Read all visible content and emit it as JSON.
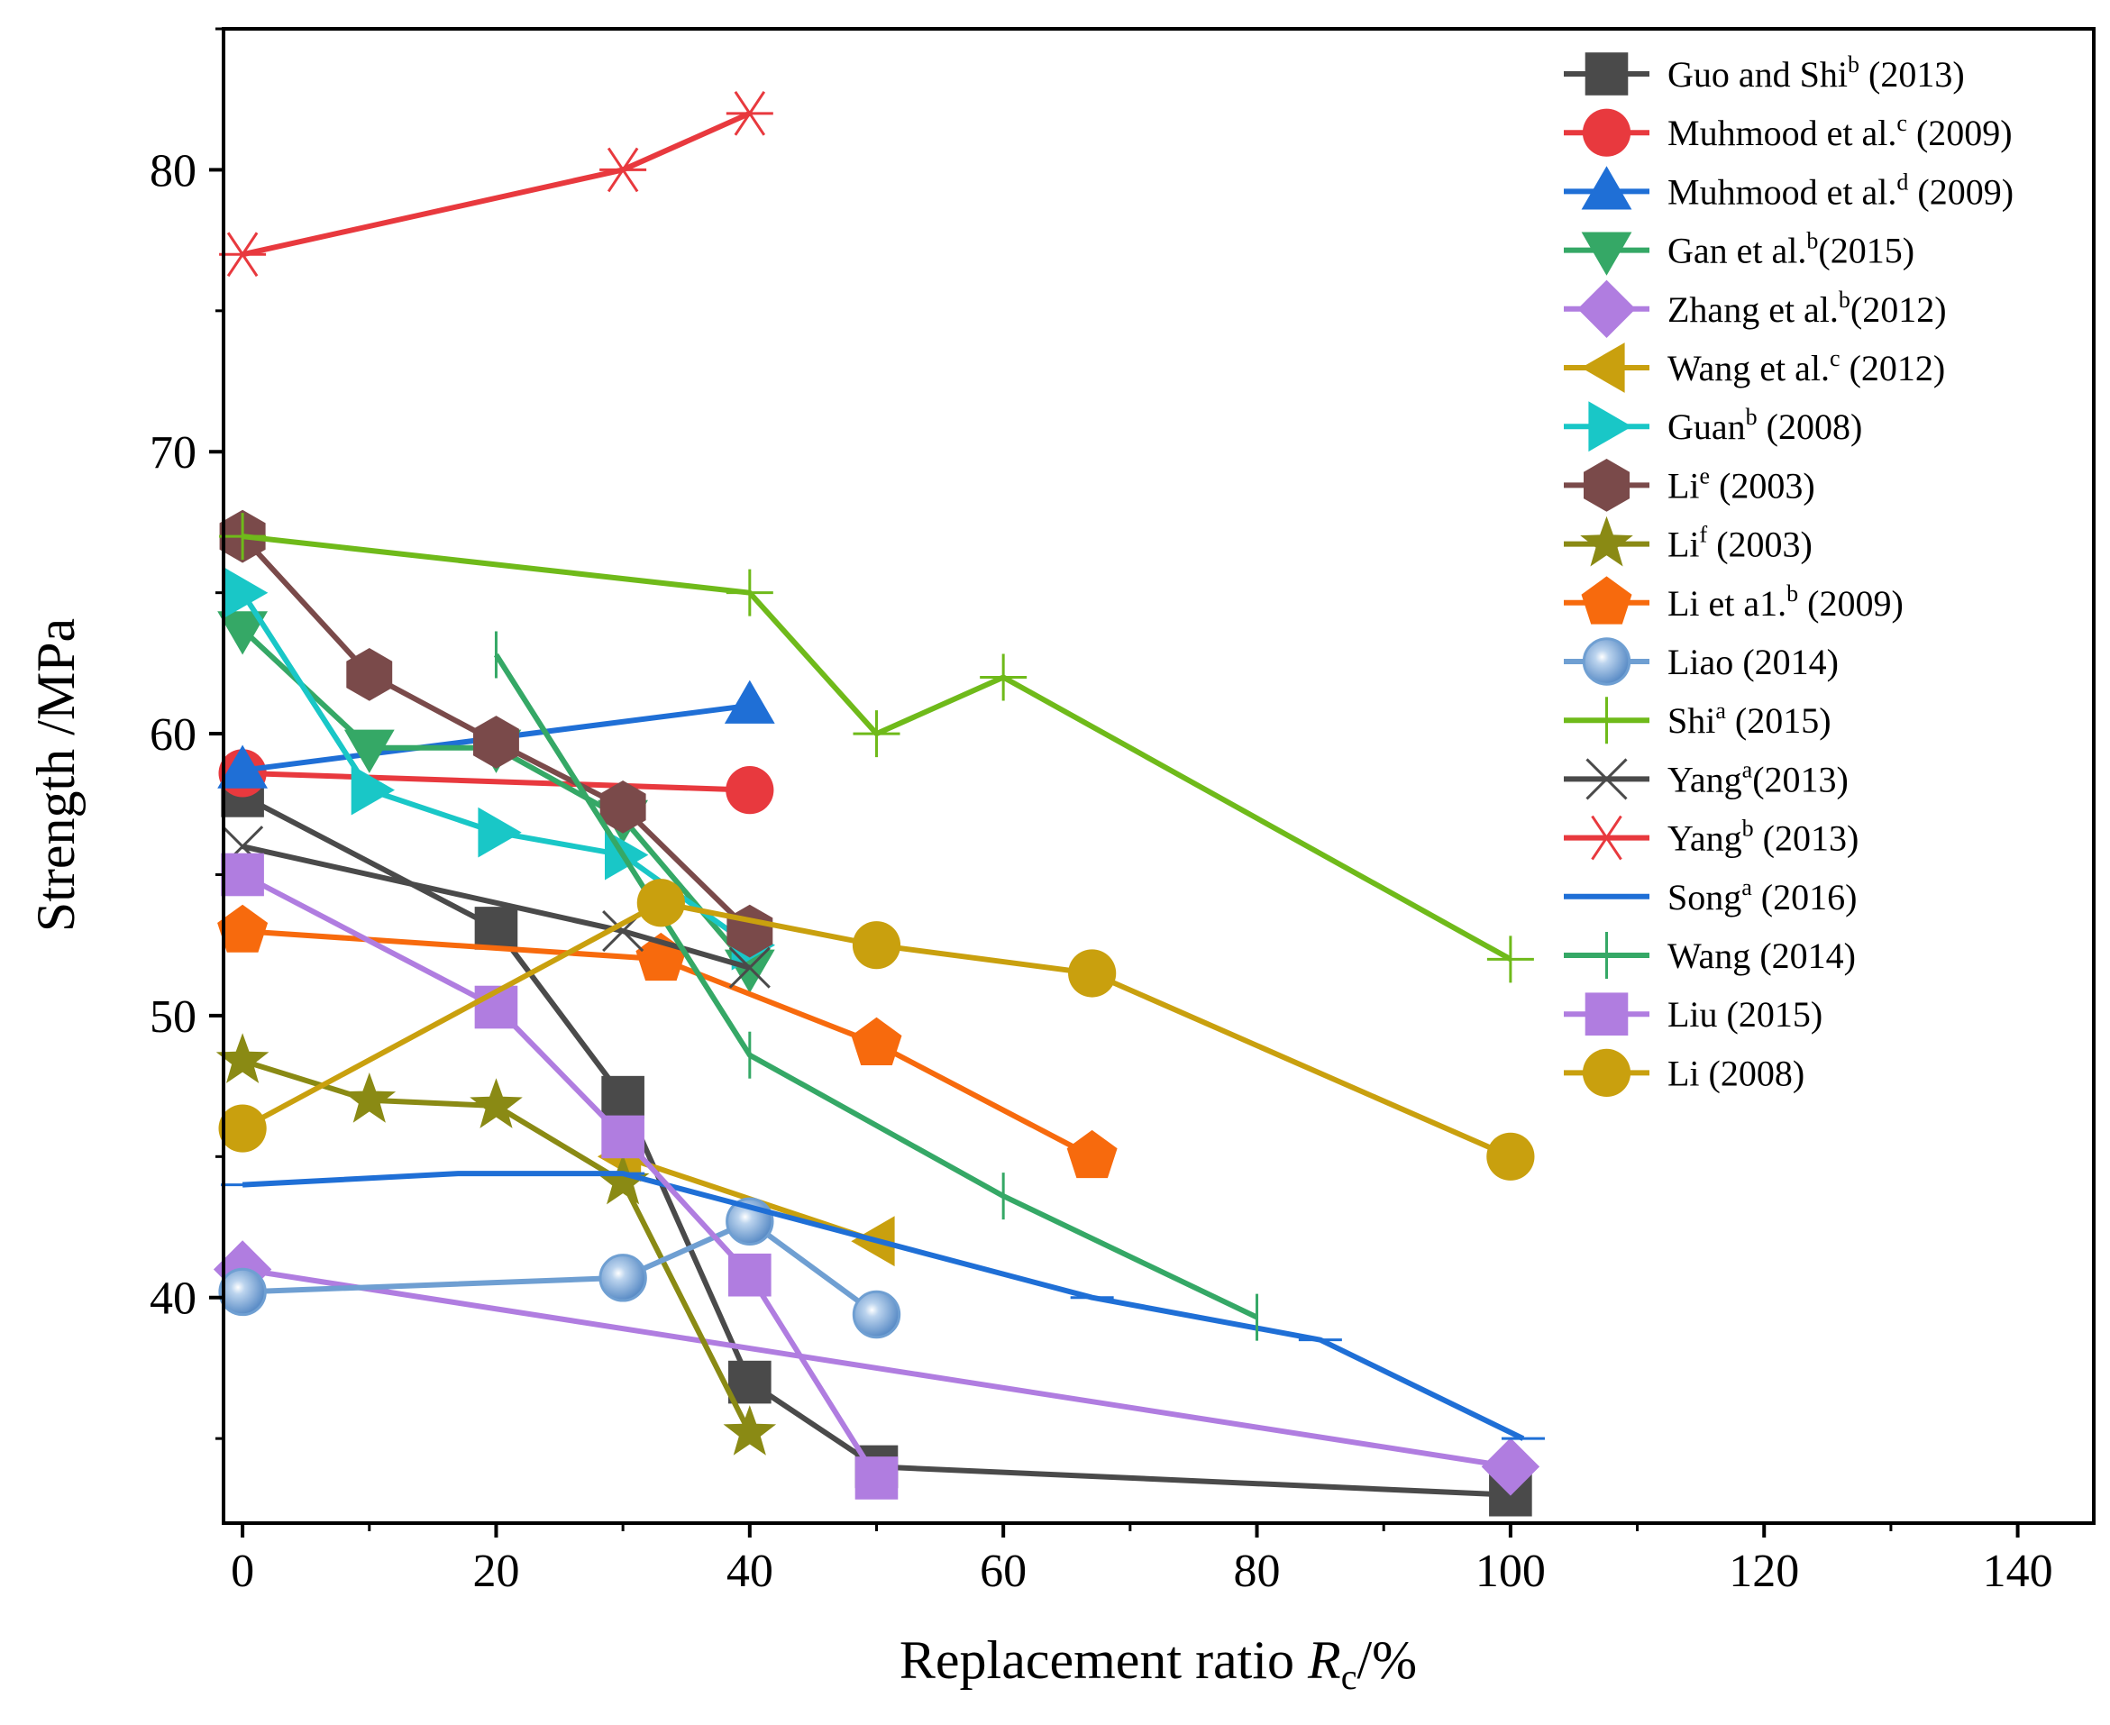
{
  "chart_data": {
    "type": "line",
    "title": "",
    "xlabel": {
      "prefix": "Replacement ratio ",
      "italic": "R",
      "subscript": "c",
      "suffix": "/%"
    },
    "ylabel": "Strength /MPa",
    "xlim": [
      -1.5,
      146
    ],
    "ylim": [
      32,
      85
    ],
    "xticks": [
      0,
      20,
      40,
      60,
      80,
      100,
      120,
      140
    ],
    "yticks": [
      40,
      50,
      60,
      70,
      80
    ],
    "grid": false,
    "legend_position": "top-right",
    "series": [
      {
        "name": "Guo and Shi",
        "sup": "b",
        "year": " (2013)",
        "color": "#4a4a4a",
        "marker": "square",
        "x": [
          0,
          20,
          30,
          40,
          50,
          100
        ],
        "y": [
          57.8,
          53.1,
          47.1,
          37,
          34,
          33
        ]
      },
      {
        "name": "Muhmood et al.",
        "sup": "c",
        "year": " (2009)",
        "color": "#e8393e",
        "marker": "circle",
        "x": [
          0,
          40
        ],
        "y": [
          58.6,
          58
        ]
      },
      {
        "name": "Muhmood et al.",
        "sup": "d",
        "year": " (2009)",
        "color": "#1f6fd6",
        "marker": "triangle-up",
        "x": [
          0,
          40
        ],
        "y": [
          58.7,
          61
        ]
      },
      {
        "name": "Gan et al.",
        "sup": "b",
        "year": "(2015)",
        "color": "#35a866",
        "marker": "triangle-down",
        "x": [
          0,
          10,
          20,
          30,
          40
        ],
        "y": [
          63.7,
          59.5,
          59.5,
          57,
          51.7
        ]
      },
      {
        "name": "Zhang et al.",
        "sup": "b",
        "year": "(2012)",
        "color": "#b07de0",
        "marker": "diamond",
        "x": [
          0,
          100
        ],
        "y": [
          41,
          34
        ]
      },
      {
        "name": "Wang et al.",
        "sup": "c",
        "year": " (2012)",
        "color": "#c9a00e",
        "marker": "triangle-left",
        "x": [
          30,
          50
        ],
        "y": [
          45,
          42
        ]
      },
      {
        "name": "Guan",
        "sup": "b",
        "year": " (2008)",
        "color": "#19c7c7",
        "marker": "triangle-right",
        "x": [
          0,
          10,
          20,
          30,
          40
        ],
        "y": [
          65,
          58,
          56.5,
          55.7,
          52.5
        ]
      },
      {
        "name": "Li",
        "sup": "e",
        "year": " (2003)",
        "color": "#7a4a4a",
        "marker": "hexagon",
        "x": [
          0,
          10,
          20,
          30,
          40
        ],
        "y": [
          67,
          62.1,
          59.7,
          57.4,
          53
        ]
      },
      {
        "name": "Li",
        "sup": "f",
        "year": " (2003)",
        "color": "#8a8a14",
        "marker": "star",
        "x": [
          0,
          10,
          20,
          30,
          40
        ],
        "y": [
          48.4,
          47,
          46.8,
          44.1,
          35.2
        ]
      },
      {
        "name": "Li et a1.",
        "sup": "b",
        "year": " (2009)",
        "color": "#f76a0d",
        "marker": "pentagon",
        "x": [
          0,
          33,
          50,
          67
        ],
        "y": [
          53,
          52,
          49,
          45
        ]
      },
      {
        "name": "Liao",
        "sup": "",
        "year": " (2014)",
        "color": "#6f9fd2",
        "marker": "sphere",
        "x": [
          0,
          30,
          40,
          50
        ],
        "y": [
          40.2,
          40.7,
          42.7,
          39.4
        ]
      },
      {
        "name": "Shi",
        "sup": "a",
        "year": " (2015)",
        "color": "#6fba1a",
        "marker": "plus",
        "x": [
          0,
          40,
          50,
          60,
          100
        ],
        "y": [
          67,
          65,
          60,
          62,
          52
        ]
      },
      {
        "name": "Yang",
        "sup": "a",
        "year": "(2013)",
        "color": "#4a4a4a",
        "marker": "x",
        "x": [
          0,
          30,
          40
        ],
        "y": [
          56,
          53,
          51.7
        ]
      },
      {
        "name": "Yang",
        "sup": "b",
        "year": " (2013)",
        "color": "#e8393e",
        "marker": "asterisk",
        "x": [
          0,
          30,
          40
        ],
        "y": [
          77,
          80,
          82
        ]
      },
      {
        "name": "Song",
        "sup": "a",
        "year": " (2016)",
        "color": "#1f6fd6",
        "marker": "hline",
        "x": [
          0,
          17,
          30,
          67,
          85,
          101
        ],
        "y": [
          44,
          44.4,
          44.4,
          40,
          38.5,
          35
        ]
      },
      {
        "name": "Wang",
        "sup": "",
        "year": " (2014)",
        "color": "#35a866",
        "marker": "vline",
        "x": [
          20,
          40,
          60,
          80
        ],
        "y": [
          62.8,
          48.6,
          43.6,
          39.3
        ]
      },
      {
        "name": "Liu",
        "sup": "",
        "year": " (2015)",
        "color": "#b07de0",
        "marker": "square",
        "x": [
          0,
          20,
          30,
          40,
          50
        ],
        "y": [
          55,
          50.3,
          45.7,
          40.8,
          33.6
        ]
      },
      {
        "name": "Li",
        "sup": "",
        "year": " (2008)",
        "color": "#c9a00e",
        "marker": "circle",
        "x": [
          0,
          33,
          50,
          67,
          100
        ],
        "y": [
          46,
          54,
          52.5,
          51.5,
          45
        ]
      }
    ]
  }
}
